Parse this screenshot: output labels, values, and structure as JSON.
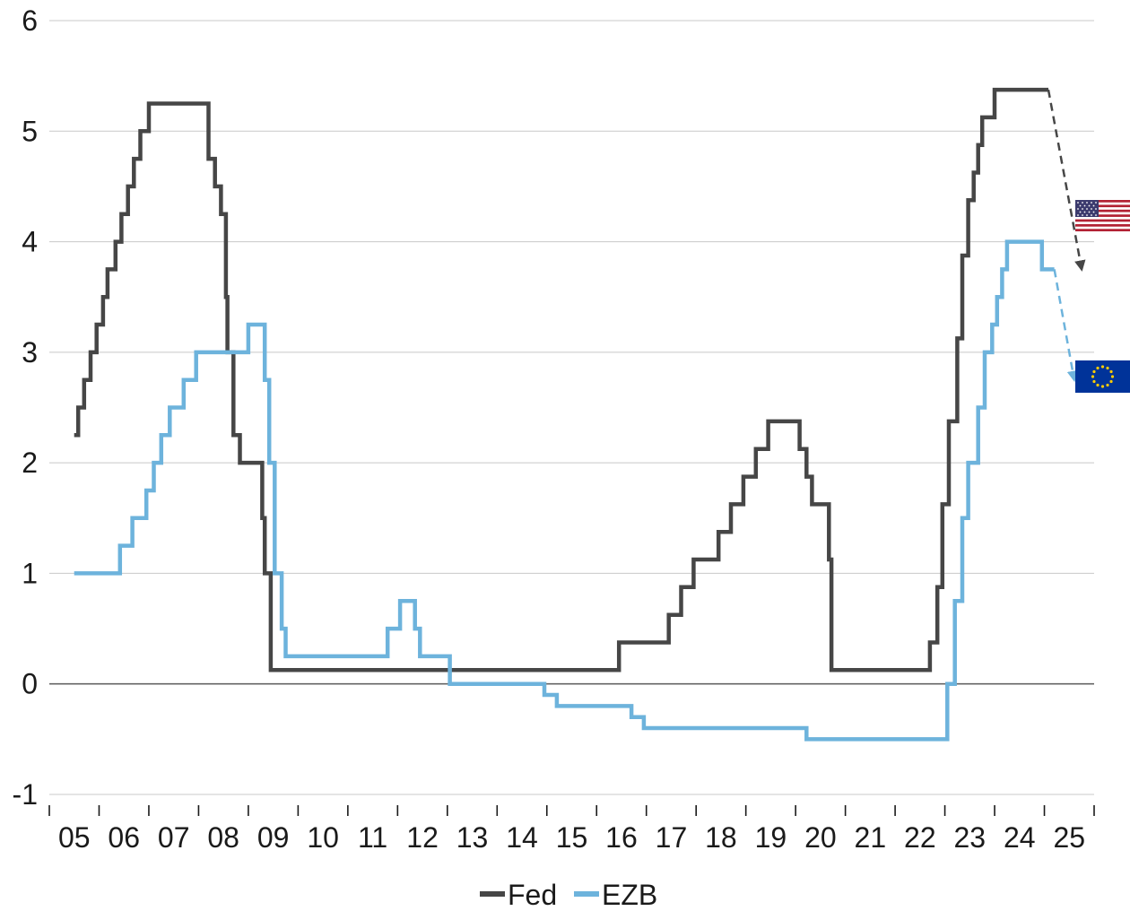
{
  "chart_data": {
    "type": "line",
    "title": "",
    "xlabel": "",
    "ylabel": "",
    "ylim": [
      -1,
      6
    ],
    "yticks": [
      -1,
      0,
      1,
      2,
      3,
      4,
      5,
      6
    ],
    "xlim": [
      2004.5,
      2025.5
    ],
    "xtick_labels": [
      "05",
      "06",
      "07",
      "08",
      "09",
      "10",
      "11",
      "12",
      "13",
      "14",
      "15",
      "16",
      "17",
      "18",
      "19",
      "20",
      "21",
      "22",
      "23",
      "24",
      "25"
    ],
    "grid": "horizontal",
    "legend": {
      "placement": "bottom-center"
    },
    "colors": {
      "Fed": "#464646",
      "EZB": "#6db3dc",
      "grid": "#c8c8c8",
      "zero_line": "#646464"
    },
    "series": [
      {
        "name": "Fed",
        "step": true,
        "points": [
          [
            2005.0,
            2.25
          ],
          [
            2005.08,
            2.5
          ],
          [
            2005.2,
            2.75
          ],
          [
            2005.33,
            3.0
          ],
          [
            2005.45,
            3.25
          ],
          [
            2005.58,
            3.5
          ],
          [
            2005.67,
            3.75
          ],
          [
            2005.83,
            4.0
          ],
          [
            2005.95,
            4.25
          ],
          [
            2006.08,
            4.5
          ],
          [
            2006.2,
            4.75
          ],
          [
            2006.33,
            5.0
          ],
          [
            2006.5,
            5.25
          ],
          [
            2007.7,
            4.75
          ],
          [
            2007.83,
            4.5
          ],
          [
            2007.95,
            4.25
          ],
          [
            2008.05,
            3.5
          ],
          [
            2008.08,
            3.0
          ],
          [
            2008.2,
            2.25
          ],
          [
            2008.33,
            2.0
          ],
          [
            2008.78,
            1.5
          ],
          [
            2008.83,
            1.0
          ],
          [
            2008.95,
            0.125
          ],
          [
            2015.95,
            0.375
          ],
          [
            2016.95,
            0.625
          ],
          [
            2017.2,
            0.875
          ],
          [
            2017.45,
            1.125
          ],
          [
            2017.95,
            1.375
          ],
          [
            2018.2,
            1.625
          ],
          [
            2018.45,
            1.875
          ],
          [
            2018.7,
            2.125
          ],
          [
            2018.95,
            2.375
          ],
          [
            2019.58,
            2.125
          ],
          [
            2019.72,
            1.875
          ],
          [
            2019.83,
            1.625
          ],
          [
            2020.17,
            1.125
          ],
          [
            2020.22,
            0.125
          ],
          [
            2022.2,
            0.375
          ],
          [
            2022.35,
            0.875
          ],
          [
            2022.45,
            1.625
          ],
          [
            2022.58,
            2.375
          ],
          [
            2022.75,
            3.125
          ],
          [
            2022.85,
            3.875
          ],
          [
            2022.97,
            4.375
          ],
          [
            2023.08,
            4.625
          ],
          [
            2023.17,
            4.875
          ],
          [
            2023.25,
            5.125
          ],
          [
            2023.5,
            5.375
          ],
          [
            2024.58,
            5.375
          ]
        ]
      },
      {
        "name": "EZB",
        "step": true,
        "points": [
          [
            2005.0,
            1.0
          ],
          [
            2005.92,
            1.25
          ],
          [
            2006.17,
            1.5
          ],
          [
            2006.45,
            1.75
          ],
          [
            2006.6,
            2.0
          ],
          [
            2006.75,
            2.25
          ],
          [
            2006.92,
            2.5
          ],
          [
            2007.2,
            2.75
          ],
          [
            2007.45,
            3.0
          ],
          [
            2008.5,
            3.25
          ],
          [
            2008.83,
            2.75
          ],
          [
            2008.92,
            2.0
          ],
          [
            2009.03,
            1.0
          ],
          [
            2009.17,
            0.5
          ],
          [
            2009.25,
            0.25
          ],
          [
            2011.3,
            0.5
          ],
          [
            2011.55,
            0.75
          ],
          [
            2011.85,
            0.5
          ],
          [
            2011.95,
            0.25
          ],
          [
            2012.55,
            0.0
          ],
          [
            2014.45,
            -0.1
          ],
          [
            2014.7,
            -0.2
          ],
          [
            2016.2,
            -0.3
          ],
          [
            2016.45,
            -0.4
          ],
          [
            2019.72,
            -0.5
          ],
          [
            2022.55,
            0.0
          ],
          [
            2022.7,
            0.75
          ],
          [
            2022.85,
            1.5
          ],
          [
            2022.97,
            2.0
          ],
          [
            2023.17,
            2.5
          ],
          [
            2023.3,
            3.0
          ],
          [
            2023.45,
            3.25
          ],
          [
            2023.55,
            3.5
          ],
          [
            2023.65,
            3.75
          ],
          [
            2023.75,
            4.0
          ],
          [
            2024.45,
            3.75
          ],
          [
            2024.7,
            3.75
          ]
        ]
      }
    ],
    "projections": [
      {
        "series": "Fed",
        "from": [
          2024.58,
          5.375
        ],
        "to": [
          2025.25,
          3.75
        ],
        "style": "dashed-arrow"
      },
      {
        "series": "EZB",
        "from": [
          2024.7,
          3.75
        ],
        "to": [
          2025.1,
          2.75
        ],
        "style": "dashed-arrow"
      }
    ],
    "flags": [
      {
        "icon": "us-flag-icon",
        "series": "Fed"
      },
      {
        "icon": "eu-flag-icon",
        "series": "EZB"
      }
    ]
  }
}
